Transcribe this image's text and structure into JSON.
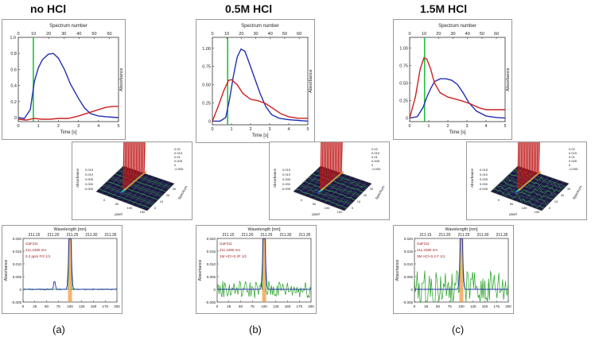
{
  "columns": [
    {
      "title": "no HCl",
      "sublabel": "(a)",
      "top_chart": {
        "type": "line",
        "xlabel": "Time [s]",
        "x2label": "Spectrum number",
        "ylabel": "Absorbance",
        "xlim": [
          0,
          5
        ],
        "ylim": [
          -0.05,
          1.0
        ],
        "xticks": [
          0,
          1,
          2,
          3,
          4,
          5
        ],
        "yticks": [
          0,
          0.2,
          0.4,
          0.6,
          0.8
        ],
        "ytick_labels": [
          "0",
          "0.2",
          "0.4",
          "0.6",
          "0.8"
        ],
        "top_label": "1.0",
        "x2ticks": [
          0,
          10,
          20,
          30,
          40,
          50,
          60
        ],
        "marker_x": 0.75,
        "series": [
          {
            "color": "#2030b0",
            "x": [
              0,
              0.3,
              0.6,
              0.8,
              1.0,
              1.2,
              1.5,
              1.75,
              2.0,
              2.3,
              2.6,
              3.0,
              3.3,
              3.6,
              4.0,
              4.4,
              5.0
            ],
            "y": [
              0,
              -0.01,
              0.1,
              0.45,
              0.62,
              0.72,
              0.79,
              0.8,
              0.74,
              0.6,
              0.42,
              0.24,
              0.12,
              0.05,
              0.02,
              0.01,
              0.0
            ]
          },
          {
            "color": "#cc2020",
            "x": [
              0,
              0.4,
              0.8,
              1.2,
              1.6,
              2.0,
              2.5,
              3.0,
              3.5,
              4.0,
              4.4,
              4.8,
              5.0
            ],
            "y": [
              -0.02,
              -0.03,
              -0.01,
              -0.02,
              -0.02,
              -0.01,
              -0.01,
              0.02,
              0.06,
              0.1,
              0.13,
              0.14,
              0.14
            ]
          }
        ]
      },
      "mid_plot": {
        "xlabel": "pixel",
        "ylabel": "Absorbance",
        "zlabel": "Spectrum",
        "xticks": [
          "0",
          "50",
          "100",
          "150"
        ],
        "zticks": [
          "0",
          "10",
          "20",
          "30"
        ],
        "ytick_labels": [
          "0.015",
          "0.010",
          "0.005",
          "0.000",
          "-0.005"
        ],
        "side_ticks": [
          "0.02",
          "0.015",
          "0.01",
          "0.005",
          "0",
          "-0.005"
        ]
      },
      "bottom_chart": {
        "type": "line",
        "x2label": "Wavelength [nm]",
        "x2ticks": [
          "211.15",
          "211.20",
          "211.25",
          "211.30",
          "211.35"
        ],
        "ylabel": "Absorbance",
        "xlim": [
          0,
          200
        ],
        "ylim": [
          -0.005,
          0.02
        ],
        "xticks": [
          0,
          25,
          50,
          75,
          100,
          125,
          150,
          175,
          200
        ],
        "yticks": [
          -0.005,
          0,
          0.005,
          0.01,
          0.015,
          0.02
        ],
        "ytick_labels": [
          "-0.005",
          "0",
          "0.005",
          "0.010",
          "0.015",
          "0.020"
        ],
        "legend": [
          "GaF211",
          "211.2480 nm",
          "0.2 ppm F/2 1/1"
        ],
        "peak_x": 100,
        "noise_amp": 0.0003,
        "bump": true
      }
    },
    {
      "title": "0.5M HCl",
      "sublabel": "(b)",
      "top_chart": {
        "type": "line",
        "xlabel": "Time [s]",
        "x2label": "Spectrum number",
        "ylabel": "Absorbance",
        "xlim": [
          0,
          5
        ],
        "ylim": [
          -0.05,
          1.15
        ],
        "xticks": [
          0,
          1,
          2,
          3,
          4,
          5
        ],
        "yticks": [
          0,
          0.25,
          0.5,
          0.75,
          1.0
        ],
        "ytick_labels": [
          "0",
          "0.25",
          "0.50",
          "0.75",
          "1.00"
        ],
        "top_label": "",
        "x2ticks": [
          0,
          10,
          20,
          30,
          40,
          50,
          60
        ],
        "marker_x": 0.8,
        "series": [
          {
            "color": "#2030b0",
            "x": [
              0,
              0.4,
              0.7,
              0.9,
              1.1,
              1.3,
              1.5,
              1.7,
              1.9,
              2.2,
              2.5,
              2.8,
              3.1,
              3.5,
              4.0,
              4.5,
              5.0
            ],
            "y": [
              0,
              0,
              0.05,
              0.3,
              0.62,
              0.88,
              0.99,
              0.96,
              0.82,
              0.6,
              0.38,
              0.2,
              0.09,
              0.04,
              0.02,
              0.01,
              0.0
            ]
          },
          {
            "color": "#cc2020",
            "x": [
              0,
              0.3,
              0.6,
              0.85,
              1.0,
              1.3,
              1.6,
              2.0,
              2.4,
              2.8,
              3.2,
              3.6,
              4.0,
              4.5,
              5.0
            ],
            "y": [
              0,
              0.2,
              0.42,
              0.56,
              0.57,
              0.5,
              0.38,
              0.3,
              0.28,
              0.24,
              0.17,
              0.1,
              0.06,
              0.04,
              0.04
            ]
          }
        ]
      },
      "mid_plot": {
        "xlabel": "pixel",
        "ylabel": "Absorbance",
        "zlabel": "Spectrum",
        "xticks": [
          "0",
          "50",
          "100",
          "150"
        ],
        "zticks": [
          "0",
          "10",
          "20",
          "30"
        ],
        "ytick_labels": [
          "0.015",
          "0.010",
          "0.005",
          "0.000",
          "-0.005"
        ],
        "side_ticks": [
          "0.02",
          "0.015",
          "0.01",
          "0.005",
          "0",
          "-0.005"
        ]
      },
      "bottom_chart": {
        "type": "line",
        "x2label": "Wavelength [nm]",
        "x2ticks": [
          "211.15",
          "211.20",
          "211.25",
          "211.30",
          "211.35"
        ],
        "ylabel": "Absorbance",
        "xlim": [
          0,
          200
        ],
        "ylim": [
          -0.005,
          0.02
        ],
        "xticks": [
          0,
          25,
          50,
          75,
          100,
          125,
          150,
          175,
          200
        ],
        "yticks": [
          -0.005,
          0,
          0.005,
          0.01,
          0.015,
          0.02
        ],
        "ytick_labels": [
          "-0.005",
          "0",
          "0.005",
          "0.010",
          "0.015",
          "0.020"
        ],
        "legend": [
          "GaF211",
          "211.2480 nm",
          "1M HCl+0.2F 1/1"
        ],
        "peak_x": 100,
        "noise_amp": 0.0035,
        "bump": false
      }
    },
    {
      "title": "1.5M HCl",
      "sublabel": "(c)",
      "top_chart": {
        "type": "line",
        "xlabel": "Time [s]",
        "x2label": "Spectrum number",
        "ylabel": "Absorbance",
        "xlim": [
          0,
          5
        ],
        "ylim": [
          -0.05,
          1.15
        ],
        "xticks": [
          0,
          1,
          2,
          3,
          4,
          5
        ],
        "yticks": [
          0,
          0.25,
          0.5,
          0.75,
          1.0
        ],
        "ytick_labels": [
          "0",
          "0.25",
          "0.50",
          "0.75",
          "1.00"
        ],
        "top_label": "",
        "x2ticks": [
          0,
          10,
          20,
          30,
          40,
          50,
          60
        ],
        "marker_x": 0.78,
        "series": [
          {
            "color": "#2030b0",
            "x": [
              0,
              0.4,
              0.7,
              0.9,
              1.1,
              1.3,
              1.6,
              1.9,
              2.2,
              2.5,
              2.8,
              3.1,
              3.5,
              4.0,
              4.5,
              5.0
            ],
            "y": [
              0,
              0.02,
              0.15,
              0.3,
              0.42,
              0.52,
              0.56,
              0.56,
              0.54,
              0.48,
              0.36,
              0.22,
              0.1,
              0.03,
              0.01,
              0.0
            ]
          },
          {
            "color": "#cc2020",
            "x": [
              0,
              0.3,
              0.55,
              0.75,
              0.9,
              1.1,
              1.3,
              1.6,
              2.0,
              2.4,
              2.8,
              3.2,
              3.6,
              4.0,
              4.5,
              5.0
            ],
            "y": [
              0,
              0.3,
              0.7,
              0.86,
              0.84,
              0.7,
              0.5,
              0.36,
              0.3,
              0.27,
              0.24,
              0.2,
              0.15,
              0.12,
              0.12,
              0.12
            ]
          }
        ]
      },
      "mid_plot": {
        "xlabel": "pixel",
        "ylabel": "Absorbance",
        "zlabel": "Spectrum",
        "xticks": [
          "0",
          "50",
          "100",
          "150"
        ],
        "zticks": [
          "0",
          "10",
          "20",
          "30"
        ],
        "ytick_labels": [
          "0.015",
          "0.010",
          "0.005",
          "0.000",
          "-0.005"
        ],
        "side_ticks": [
          "0.02",
          "0.015",
          "0.01",
          "0.005",
          "0",
          "-0.005"
        ]
      },
      "bottom_chart": {
        "type": "line",
        "x2label": "Wavelength [nm]",
        "x2ticks": [
          "211.15",
          "211.20",
          "211.25",
          "211.30",
          "211.35"
        ],
        "ylabel": "Absorbance",
        "xlim": [
          0,
          200
        ],
        "ylim": [
          -0.005,
          0.02
        ],
        "xticks": [
          0,
          25,
          50,
          75,
          100,
          125,
          150,
          175,
          200
        ],
        "yticks": [
          -0.005,
          0,
          0.005,
          0.01,
          0.015,
          0.02
        ],
        "ytick_labels": [
          "-0.005",
          "0",
          "0.005",
          "0.010",
          "0.015",
          "0.020"
        ],
        "legend": [
          "GaF211",
          "211.2480 nm",
          "3M HCl+0.2 F 1/1"
        ],
        "peak_x": 100,
        "noise_amp": 0.0075,
        "bump": false
      }
    }
  ]
}
